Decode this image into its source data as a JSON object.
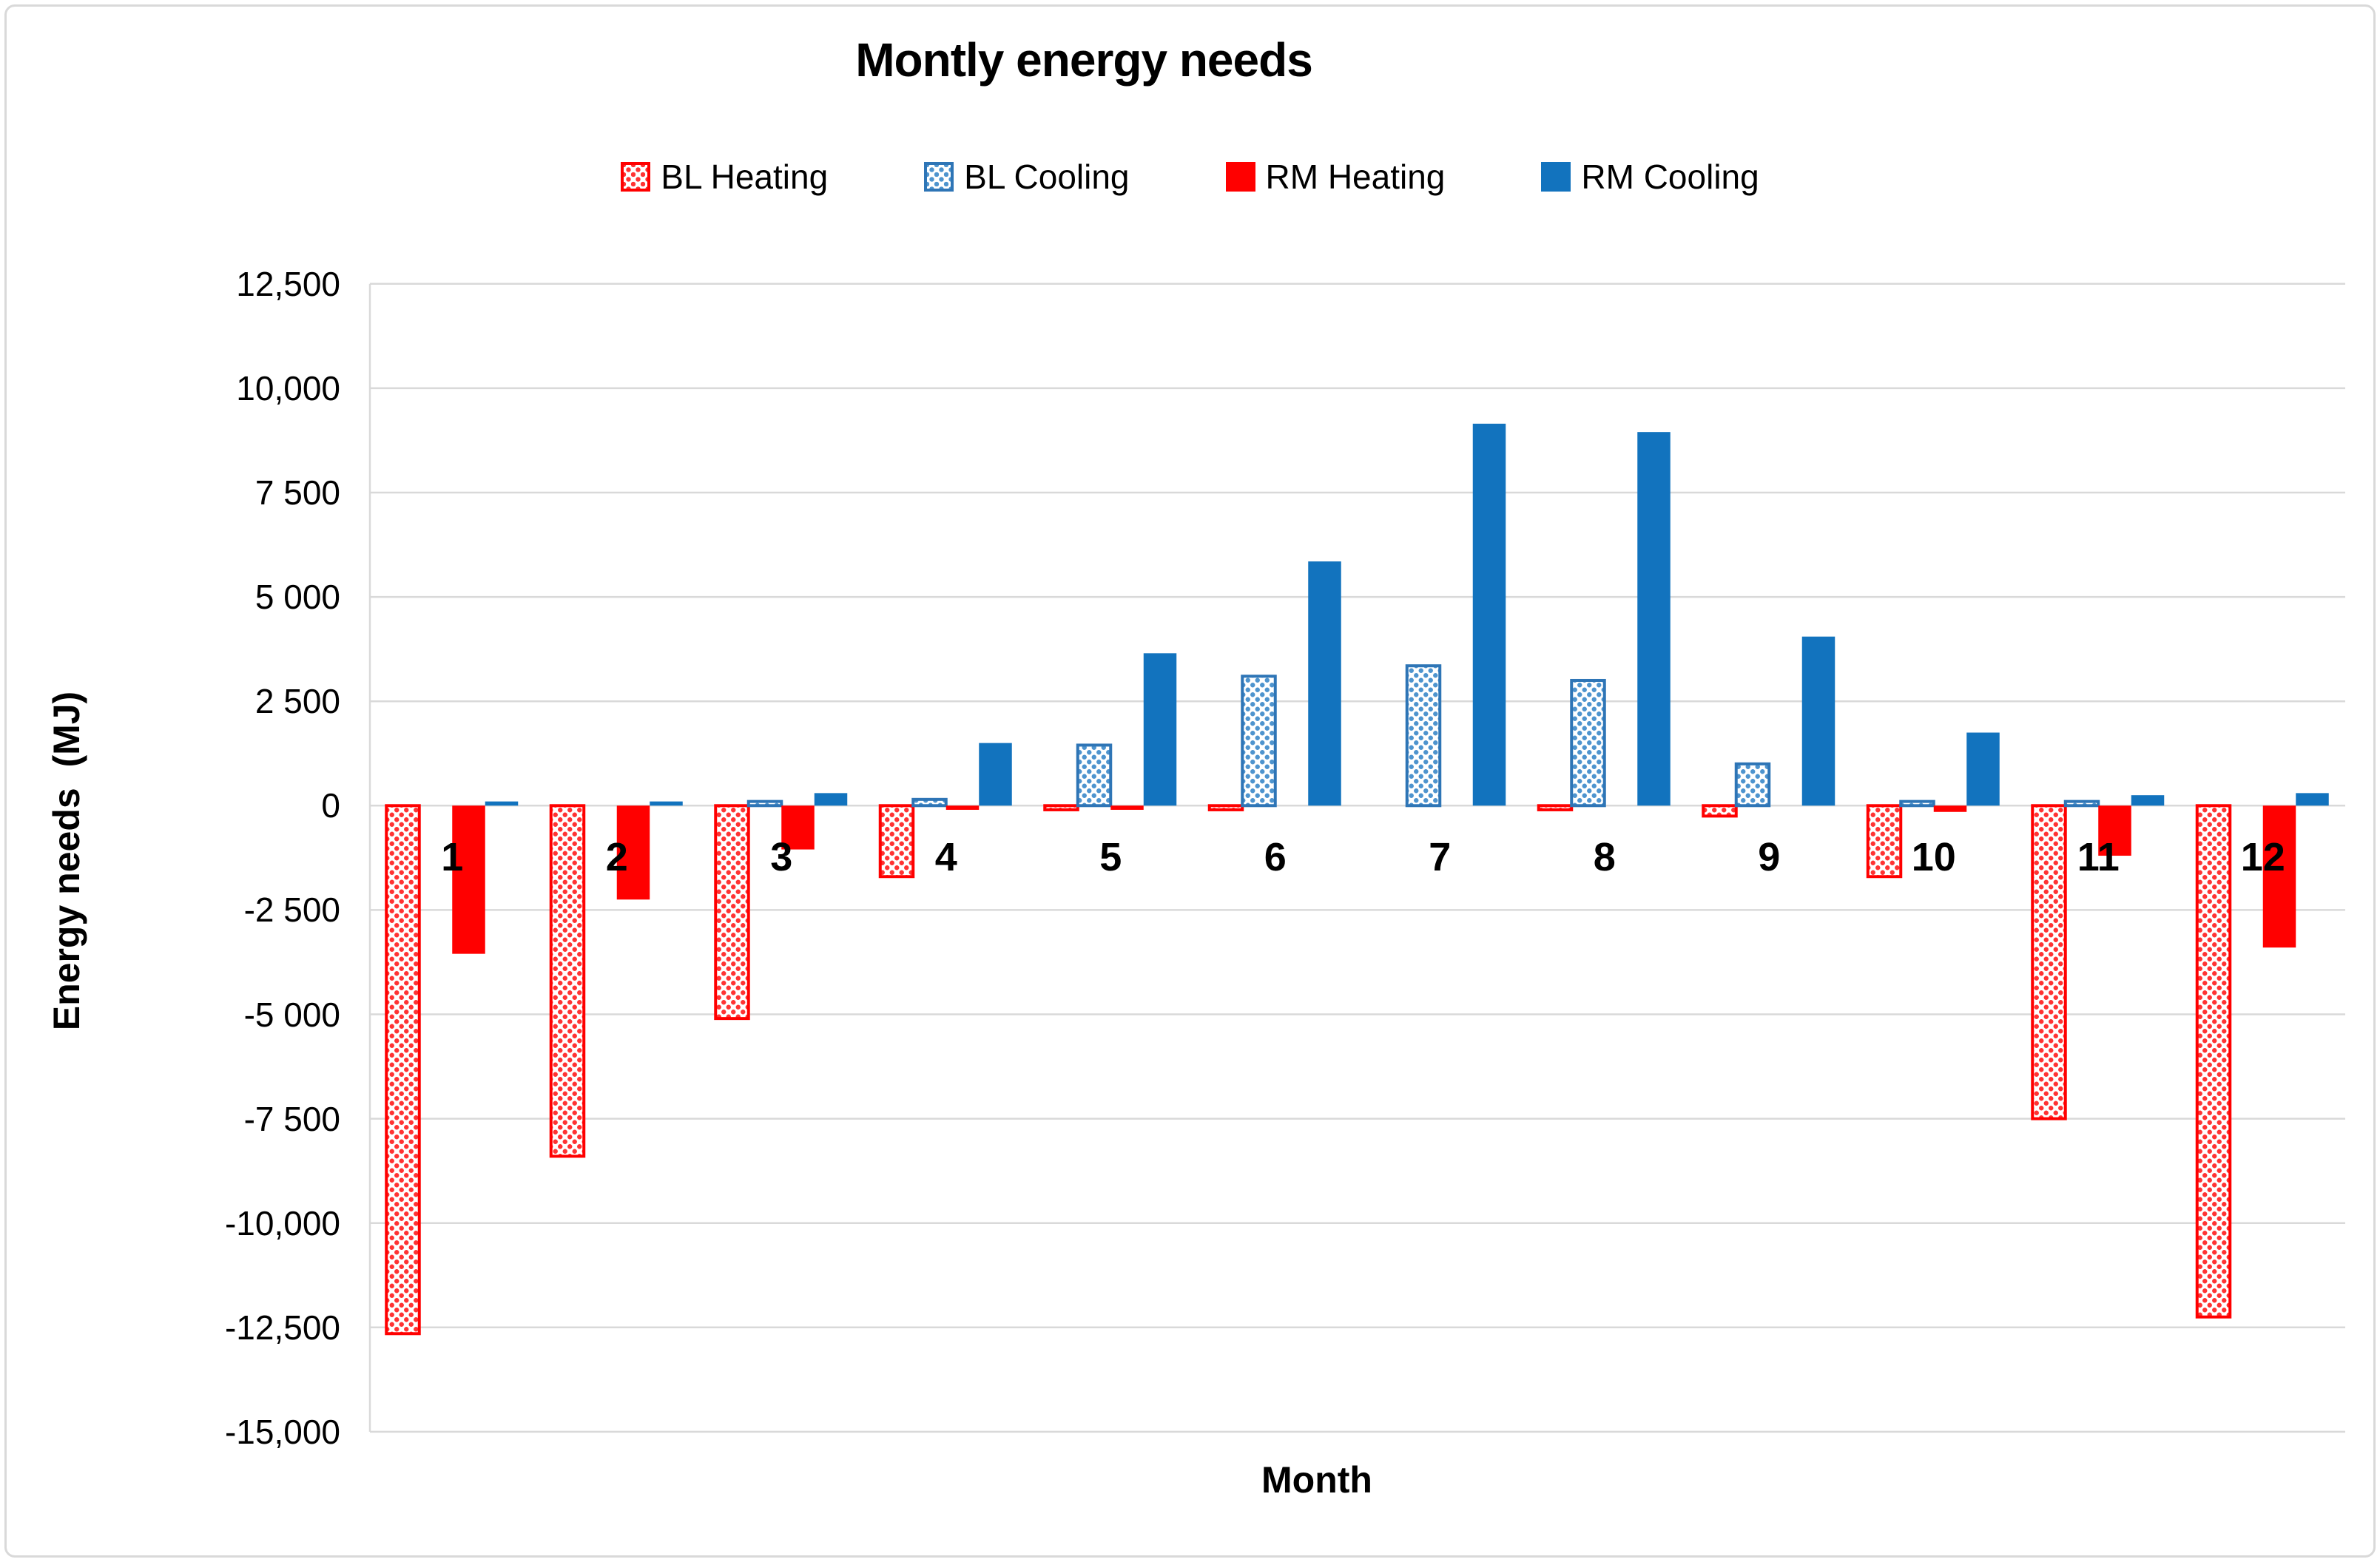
{
  "title": "Montly energy needs",
  "colors": {
    "red": "#FF0000",
    "red_dots": "#FF3333",
    "blue_solid": "#1273BE",
    "blue_outline": "#2E75B6",
    "blue_dots": "#4E94CE",
    "grid": "#D9D9D9",
    "text": "#000000"
  },
  "legend": [
    {
      "label": "BL Heating",
      "swatch": "dotted-red"
    },
    {
      "label": "BL Cooling",
      "swatch": "dotted-blue"
    },
    {
      "label": "RM Heating",
      "swatch": "solid-red"
    },
    {
      "label": "RM Cooling",
      "swatch": "solid-blue"
    }
  ],
  "chart_data": {
    "type": "bar",
    "title": "Montly energy needs",
    "xlabel": "Month",
    "ylabel": "Energy needs  (MJ)",
    "categories": [
      "1",
      "2",
      "3",
      "4",
      "5",
      "6",
      "7",
      "8",
      "9",
      "10",
      "11",
      "12"
    ],
    "series": [
      {
        "name": "BL Heating",
        "style": "dotted-red",
        "values": [
          -12650,
          -8400,
          -5100,
          -1700,
          -100,
          -100,
          0,
          -100,
          -250,
          -1700,
          -7500,
          -12250
        ]
      },
      {
        "name": "BL Cooling",
        "style": "dotted-blue",
        "values": [
          0,
          0,
          100,
          150,
          1450,
          3100,
          3350,
          3000,
          1000,
          100,
          100,
          0
        ]
      },
      {
        "name": "RM Heating",
        "style": "solid-red",
        "values": [
          -3550,
          -2250,
          -1050,
          -100,
          -100,
          0,
          0,
          0,
          0,
          -150,
          -1200,
          -3400
        ]
      },
      {
        "name": "RM Cooling",
        "style": "solid-blue",
        "values": [
          100,
          100,
          300,
          1500,
          3650,
          5850,
          9150,
          8950,
          4050,
          1750,
          250,
          300
        ]
      }
    ],
    "ylim": [
      -15000,
      12500
    ],
    "ytick_step": 2500,
    "ytick_labels": [
      "12,500",
      "10,000",
      "7 500",
      "5 000",
      "2 500",
      "0",
      "-2 500",
      "-5 000",
      "-7 500",
      "-10,000",
      "-12,500",
      "-15,000"
    ],
    "grid": true,
    "legend_position": "top"
  }
}
